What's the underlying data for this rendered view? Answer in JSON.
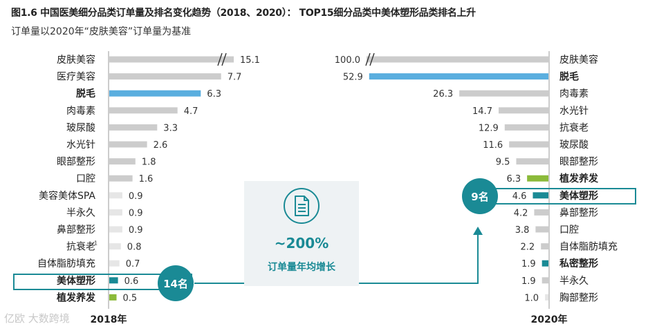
{
  "title": "图1.6 中国医美细分品类订单量及排名变化趋势（2018、2020）： TOP15细分品类中美体塑形品类排名上升",
  "subtitle": "订单量以2020年“皮肤美容”订单量为基准",
  "watermark": "亿欧 大数跨境",
  "center_card": {
    "icon": "document-icon",
    "growth": "~200%",
    "label": "订单量年均增长"
  },
  "rank_2018": "14名",
  "rank_2020": "9名",
  "colors": {
    "accent_teal": "#1a8a95",
    "blue": "#5aaedf",
    "green": "#8bba3a",
    "grey_bar": "#cccccc",
    "light_bar": "#e6e6e6"
  },
  "chart_data": [
    {
      "type": "bar",
      "orientation": "horizontal",
      "xlabel": "2018年",
      "categories": [
        "皮肤美容",
        "医疗美容",
        "脱毛",
        "肉毒素",
        "玻尿酸",
        "水光针",
        "眼部整形",
        "口腔",
        "美容美体SPA",
        "半永久",
        "鼻部整形",
        "抗衰老",
        "自体脂肪填充",
        "美体塑形",
        "植发养发"
      ],
      "values": [
        15.1,
        7.7,
        6.3,
        4.7,
        3.3,
        2.6,
        1.8,
        1.6,
        0.9,
        0.9,
        0.9,
        0.8,
        0.7,
        0.6,
        0.5
      ],
      "annotations": [
        {
          "category": "抗衰老",
          "text": "1"
        }
      ],
      "axis_break": "皮肤美容",
      "highlight": {
        "blue": [
          "脱毛"
        ],
        "teal": [
          "美体塑形"
        ],
        "green": [
          "植发养发"
        ]
      }
    },
    {
      "type": "bar",
      "orientation": "horizontal",
      "xlabel": "2020年",
      "categories": [
        "皮肤美容",
        "脱毛",
        "肉毒素",
        "水光针",
        "抗衰老",
        "玻尿酸",
        "眼部整形",
        "植发养发",
        "美体塑形",
        "鼻部整形",
        "口腔",
        "自体脂肪填充",
        "私密整形",
        "半永久",
        "胸部整形"
      ],
      "values": [
        100.0,
        52.9,
        26.3,
        14.7,
        12.9,
        11.6,
        9.5,
        6.3,
        4.6,
        4.2,
        3.8,
        2.2,
        1.9,
        1.9,
        1.0
      ],
      "axis_break": "皮肤美容",
      "highlight": {
        "blue": [
          "脱毛"
        ],
        "teal": [
          "美体塑形",
          "私密整形"
        ],
        "green": [
          "植发养发"
        ]
      }
    }
  ]
}
